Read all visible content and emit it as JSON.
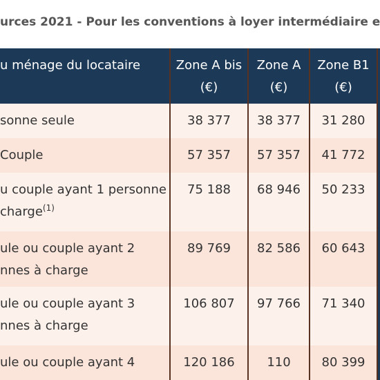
{
  "title": "urces 2021 - Pour les conventions à loyer intermédiaire e",
  "table": {
    "header": [
      {
        "lines": [
          "u ménage du locataire"
        ]
      },
      {
        "lines": [
          "Zone A bis",
          "(€)"
        ]
      },
      {
        "lines": [
          "Zone A",
          "(€)"
        ]
      },
      {
        "lines": [
          "Zone B1",
          "(€)"
        ]
      }
    ],
    "rows": [
      [
        {
          "lines": [
            "sonne seule"
          ]
        },
        {
          "lines": [
            "38 377"
          ]
        },
        {
          "lines": [
            "38 377"
          ]
        },
        {
          "lines": [
            "31 280"
          ]
        }
      ],
      [
        {
          "lines": [
            "Couple"
          ]
        },
        {
          "lines": [
            "57 357"
          ]
        },
        {
          "lines": [
            "57 357"
          ]
        },
        {
          "lines": [
            "41 772"
          ]
        }
      ],
      [
        {
          "lines": [
            "u couple ayant 1 personne",
            "charge"
          ],
          "sup": "(1)"
        },
        {
          "lines": [
            "75 188"
          ]
        },
        {
          "lines": [
            "68 946"
          ]
        },
        {
          "lines": [
            "50 233"
          ]
        }
      ],
      [
        {
          "lines": [
            "ule ou couple ayant 2",
            "nnes à charge"
          ]
        },
        {
          "lines": [
            "89 769"
          ]
        },
        {
          "lines": [
            "82 586"
          ]
        },
        {
          "lines": [
            "60 643"
          ]
        }
      ],
      [
        {
          "lines": [
            "ule ou couple ayant 3",
            "nnes à charge"
          ]
        },
        {
          "lines": [
            "106 807"
          ]
        },
        {
          "lines": [
            "97 766"
          ]
        },
        {
          "lines": [
            "71 340"
          ]
        }
      ],
      [
        {
          "lines": [
            "ule ou couple ayant 4"
          ]
        },
        {
          "lines": [
            "120 186"
          ]
        },
        {
          "lines": [
            "110"
          ]
        },
        {
          "lines": [
            "80 399"
          ]
        }
      ]
    ]
  }
}
